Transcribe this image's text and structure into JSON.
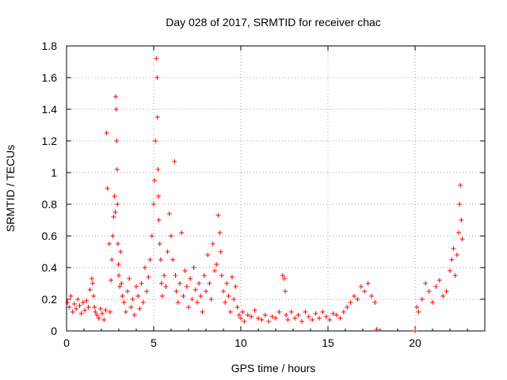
{
  "chart_data": {
    "type": "scatter",
    "title": "Day 028 of 2017, SRMTID for receiver chac",
    "xlabel": "GPS time / hours",
    "ylabel": "SRMTID / TECUs",
    "xlim": [
      0,
      24
    ],
    "ylim": [
      0,
      1.8
    ],
    "xticks": [
      0,
      5,
      10,
      15,
      20
    ],
    "yticks": [
      0,
      0.2,
      0.4,
      0.6,
      0.8,
      1,
      1.2,
      1.4,
      1.6,
      1.8
    ],
    "ytick_labels": [
      "0",
      "0.2",
      "0.4",
      "0.6",
      "0.8",
      "1",
      "1.2",
      "1.4",
      "1.6",
      "1.8"
    ],
    "grid": true,
    "marker": "plus",
    "color": "#ff0000",
    "series": [
      {
        "name": "SRMTID",
        "x": [
          0.05,
          0.15,
          0.25,
          0.35,
          0.45,
          0.55,
          0.65,
          0.75,
          0.85,
          0.95,
          1.05,
          1.15,
          1.25,
          1.35,
          1.45,
          1.5,
          1.55,
          1.6,
          1.65,
          1.75,
          1.85,
          1.95,
          2.05,
          2.15,
          2.25,
          2.3,
          2.35,
          2.45,
          2.5,
          2.55,
          2.6,
          2.65,
          2.7,
          2.75,
          2.8,
          2.82,
          2.85,
          2.88,
          2.9,
          2.92,
          2.95,
          2.98,
          3.0,
          3.05,
          3.1,
          3.15,
          3.2,
          3.3,
          3.4,
          3.5,
          3.6,
          3.7,
          3.8,
          3.9,
          4.0,
          4.1,
          4.2,
          4.3,
          4.4,
          4.5,
          4.6,
          4.7,
          4.8,
          4.9,
          5.0,
          5.05,
          5.1,
          5.15,
          5.2,
          5.22,
          5.25,
          5.28,
          5.3,
          5.35,
          5.4,
          5.45,
          5.5,
          5.6,
          5.7,
          5.8,
          5.9,
          6.0,
          6.1,
          6.2,
          6.25,
          6.3,
          6.4,
          6.5,
          6.6,
          6.7,
          6.8,
          6.9,
          7.0,
          7.1,
          7.2,
          7.3,
          7.4,
          7.5,
          7.6,
          7.7,
          7.8,
          7.9,
          8.0,
          8.1,
          8.2,
          8.3,
          8.4,
          8.5,
          8.6,
          8.7,
          8.8,
          8.85,
          8.9,
          9.0,
          9.1,
          9.2,
          9.3,
          9.4,
          9.5,
          9.6,
          9.7,
          9.8,
          9.9,
          10.0,
          10.1,
          10.2,
          10.4,
          10.6,
          10.8,
          11.0,
          11.2,
          11.4,
          11.6,
          11.8,
          12.0,
          12.2,
          12.4,
          12.5,
          12.55,
          12.6,
          12.7,
          12.9,
          13.1,
          13.3,
          13.5,
          13.7,
          13.9,
          14.1,
          14.3,
          14.5,
          14.7,
          14.9,
          15.1,
          15.3,
          15.5,
          15.7,
          15.9,
          16.1,
          16.3,
          16.5,
          16.7,
          16.9,
          17.1,
          17.3,
          17.5,
          17.7,
          17.8,
          20.0,
          20.1,
          20.2,
          20.4,
          20.6,
          20.8,
          21.0,
          21.2,
          21.4,
          21.6,
          21.8,
          22.0,
          22.1,
          22.2,
          22.3,
          22.4,
          22.5,
          22.55,
          22.6,
          22.65,
          22.7
        ],
        "y": [
          0.18,
          0.15,
          0.22,
          0.12,
          0.17,
          0.14,
          0.2,
          0.16,
          0.11,
          0.18,
          0.13,
          0.19,
          0.15,
          0.26,
          0.33,
          0.3,
          0.22,
          0.15,
          0.12,
          0.1,
          0.08,
          0.14,
          0.11,
          0.07,
          0.13,
          1.25,
          0.9,
          0.55,
          0.12,
          0.32,
          0.45,
          0.6,
          0.72,
          0.85,
          0.75,
          1.48,
          1.4,
          1.2,
          1.02,
          0.8,
          0.55,
          0.42,
          0.35,
          0.28,
          0.5,
          0.3,
          0.22,
          0.18,
          0.12,
          0.25,
          0.33,
          0.15,
          0.2,
          0.1,
          0.28,
          0.22,
          0.14,
          0.3,
          0.18,
          0.4,
          0.25,
          0.34,
          0.45,
          0.6,
          0.8,
          0.95,
          1.2,
          1.72,
          1.6,
          1.35,
          1.02,
          0.85,
          0.7,
          0.55,
          0.45,
          0.3,
          0.22,
          0.35,
          0.28,
          0.5,
          0.74,
          0.6,
          0.45,
          1.07,
          0.35,
          0.25,
          0.18,
          0.3,
          0.62,
          0.22,
          0.38,
          0.28,
          0.15,
          0.33,
          0.2,
          0.4,
          0.26,
          0.18,
          0.3,
          0.22,
          0.12,
          0.35,
          0.25,
          0.48,
          0.3,
          0.2,
          0.55,
          0.38,
          0.42,
          0.73,
          0.62,
          0.5,
          0.35,
          0.25,
          0.18,
          0.3,
          0.22,
          0.12,
          0.34,
          0.2,
          0.28,
          0.15,
          0.1,
          0.08,
          0.12,
          0.06,
          0.1,
          0.09,
          0.13,
          0.08,
          0.07,
          0.1,
          0.06,
          0.09,
          0.08,
          0.12,
          0.35,
          0.33,
          0.25,
          0.1,
          0.07,
          0.12,
          0.08,
          0.1,
          0.06,
          0.12,
          0.09,
          0.07,
          0.11,
          0.08,
          0.12,
          0.09,
          0.07,
          0.11,
          0.1,
          0.08,
          0.12,
          0.15,
          0.18,
          0.22,
          0.2,
          0.28,
          0.25,
          0.3,
          0.22,
          0.18,
          0.01,
          0.0,
          0.15,
          0.12,
          0.2,
          0.3,
          0.25,
          0.18,
          0.28,
          0.32,
          0.22,
          0.25,
          0.38,
          0.45,
          0.52,
          0.35,
          0.48,
          0.62,
          0.8,
          0.92,
          0.7,
          0.58
        ]
      }
    ]
  }
}
